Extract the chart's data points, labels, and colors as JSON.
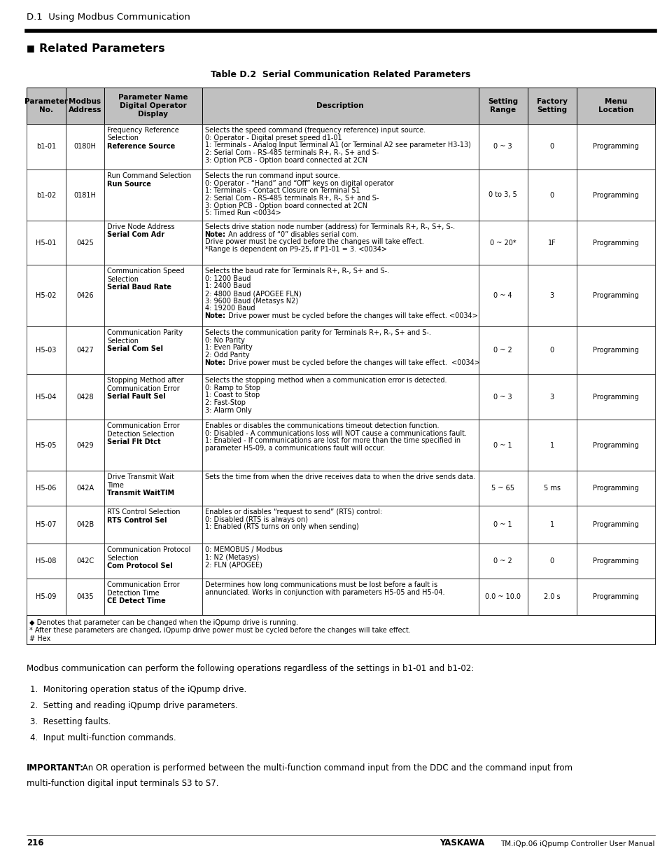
{
  "page_title": "D.1  Using Modbus Communication",
  "section_title": "Related Parameters",
  "table_title": "Table D.2  Serial Communication Related Parameters",
  "header_bg": "#c0c0c0",
  "rows": [
    {
      "param": "b1-01",
      "address": "0180H",
      "name_normal": "Frequency Reference\nSelection",
      "name_bold": "Reference Source",
      "description": "Selects the speed command (frequency reference) input source.\n0: Operator - Digital preset speed d1-01\n1: Terminals - Analog Input Terminal A1 (or Terminal A2 see parameter H3-13)\n2: Serial Com - RS-485 terminals R+, R-, S+ and S-\n3: Option PCB - Option board connected at 2CN",
      "note_lines": [],
      "range": "0 ~ 3",
      "factory": "0",
      "menu": "Programming"
    },
    {
      "param": "b1-02",
      "address": "0181H",
      "name_normal": "Run Command Selection",
      "name_bold": "Run Source",
      "description": "Selects the run command input source.\n0: Operator - “Hand” and “Off” keys on digital operator\n1: Terminals - Contact Closure on Terminal S1\n2: Serial Com - RS-485 terminals R+, R-, S+ and S-\n3: Option PCB - Option board connected at 2CN\n5: Timed Run <0034>",
      "note_lines": [],
      "range": "0 to 3, 5",
      "factory": "0",
      "menu": "Programming"
    },
    {
      "param": "H5-01",
      "address": "0425",
      "name_normal": "Drive Node Address",
      "name_bold": "Serial Com Adr",
      "description": "Selects drive station node number (address) for Terminals R+, R-, S+, S-.\n|Note:| An address of “0” disables serial com.\nDrive power must be cycled before the changes will take effect.\n*Range is dependent on P9-25, if P1-01 = 3. <0034>",
      "note_lines": [
        1
      ],
      "range": "0 ~ 20*",
      "factory": "1F",
      "menu": "Programming"
    },
    {
      "param": "H5-02",
      "address": "0426",
      "name_normal": "Communication Speed\nSelection",
      "name_bold": "Serial Baud Rate",
      "description": "Selects the baud rate for Terminals R+, R-, S+ and S-.\n0: 1200 Baud\n1: 2400 Baud\n2: 4800 Baud (APOGEE FLN)\n3: 9600 Baud (Metasys N2)\n4: 19200 Baud\n|Note:| Drive power must be cycled before the changes will take effect. <0034>",
      "note_lines": [
        6
      ],
      "range": "0 ~ 4",
      "factory": "3",
      "menu": "Programming"
    },
    {
      "param": "H5-03",
      "address": "0427",
      "name_normal": "Communication Parity\nSelection",
      "name_bold": "Serial Com Sel",
      "description": "Selects the communication parity for Terminals R+, R-, S+ and S-.\n0: No Parity\n1: Even Parity\n2: Odd Parity\n|Note:| Drive power must be cycled before the changes will take effect.  <0034>",
      "note_lines": [
        4
      ],
      "range": "0 ~ 2",
      "factory": "0",
      "menu": "Programming"
    },
    {
      "param": "H5-04",
      "address": "0428",
      "name_normal": "Stopping Method after\nCommunication Error",
      "name_bold": "Serial Fault Sel",
      "description": "Selects the stopping method when a communication error is detected.\n0: Ramp to Stop\n1: Coast to Stop\n2: Fast-Stop\n3: Alarm Only",
      "note_lines": [],
      "range": "0 ~ 3",
      "factory": "3",
      "menu": "Programming"
    },
    {
      "param": "H5-05",
      "address": "0429",
      "name_normal": "Communication Error\nDetection Selection",
      "name_bold": "Serial Flt Dtct",
      "description": "Enables or disables the communications timeout detection function.\n0: Disabled - A communications loss will NOT cause a communications fault.\n1: Enabled - If communications are lost for more than the time specified in\nparameter H5-09, a communications fault will occur.",
      "note_lines": [],
      "range": "0 ~ 1",
      "factory": "1",
      "menu": "Programming"
    },
    {
      "param": "H5-06",
      "address": "042A",
      "name_normal": "Drive Transmit Wait\nTime",
      "name_bold": "Transmit WaitTIM",
      "description": "Sets the time from when the drive receives data to when the drive sends data.",
      "note_lines": [],
      "range": "5 ~ 65",
      "factory": "5 ms",
      "menu": "Programming"
    },
    {
      "param": "H5-07",
      "address": "042B",
      "name_normal": "RTS Control Selection",
      "name_bold": "RTS Control Sel",
      "description": "Enables or disables “request to send” (RTS) control:\n0: Disabled (RTS is always on)\n1: Enabled (RTS turns on only when sending)",
      "note_lines": [],
      "range": "0 ~ 1",
      "factory": "1",
      "menu": "Programming"
    },
    {
      "param": "H5-08",
      "address": "042C",
      "name_normal": "Communication Protocol\nSelection",
      "name_bold": "Com Protocol Sel",
      "description": "0: MEMOBUS / Modbus\n1: N2 (Metasys)\n2: FLN (APOGEE)",
      "note_lines": [],
      "range": "0 ~ 2",
      "factory": "0",
      "menu": "Programming"
    },
    {
      "param": "H5-09",
      "address": "0435",
      "name_normal": "Communication Error\nDetection Time",
      "name_bold": "CE Detect Time",
      "description": "Determines how long communications must be lost before a fault is\nannunciated. Works in conjunction with parameters H5-05 and H5-04.",
      "note_lines": [],
      "range": "0.0 ~ 10.0",
      "factory": "2.0 s",
      "menu": "Programming"
    }
  ],
  "footer_notes": [
    "◆ Denotes that parameter can be changed when the iQpump drive is running.",
    "* After these parameters are changed, iQpump drive power must be cycled before the changes will take effect.",
    "# Hex"
  ],
  "body_text": "Modbus communication can perform the following operations regardless of the settings in b1-01 and b1-02:",
  "list_items": [
    "1.  Monitoring operation status of the iQpump drive.",
    "2.  Setting and reading iQpump drive parameters.",
    "3.  Resetting faults.",
    "4.  Input multi-function commands."
  ],
  "important_label": "IMPORTANT:",
  "important_body": " An OR operation is performed between the multi-function command input from the DDC and the command input from\nmulti-function digital input terminals S3 to S7.",
  "page_number": "216",
  "brand": "YASKAWA",
  "manual_ref": "TM.iQp.06 iQpump Controller User Manual"
}
